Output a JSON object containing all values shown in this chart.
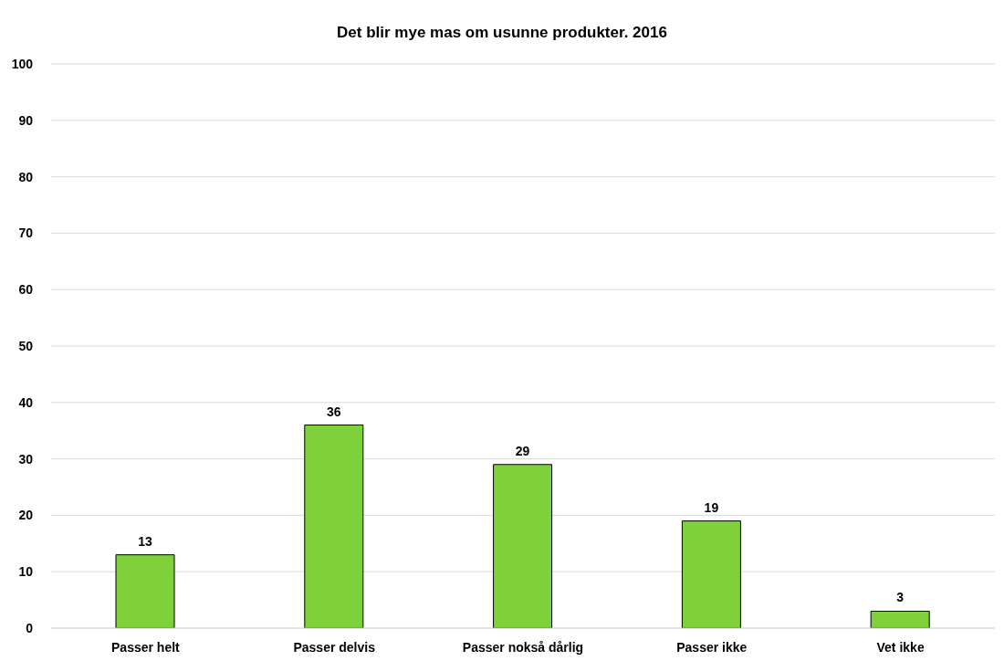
{
  "chart_data": {
    "type": "bar",
    "title": "Det blir mye mas om usunne produkter. 2016",
    "categories": [
      "Passer helt",
      "Passer delvis",
      "Passer nokså dårlig",
      "Passer ikke",
      "Vet ikke"
    ],
    "values": [
      13,
      36,
      29,
      19,
      3
    ],
    "color": "#7fd13b",
    "ylim": [
      0,
      100
    ],
    "yticks": [
      0,
      10,
      20,
      30,
      40,
      50,
      60,
      70,
      80,
      90,
      100
    ],
    "grid": "y",
    "data_labels": true
  }
}
